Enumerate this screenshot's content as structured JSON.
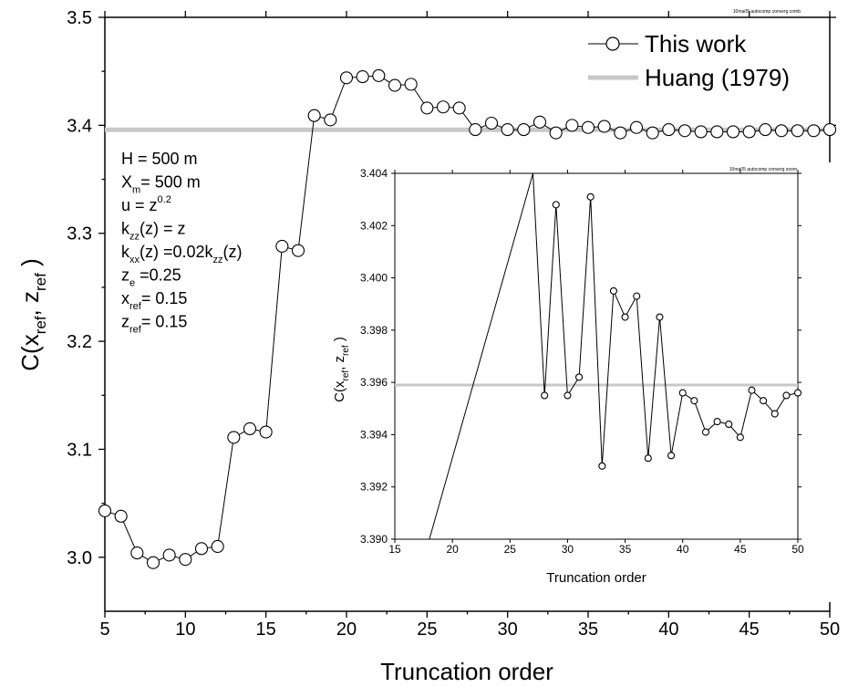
{
  "chart_data": [
    {
      "type": "line",
      "annotation": "10ma05 autocomp converg comb",
      "xlabel": "Truncation order",
      "ylabel_main": "C(x",
      "ylabel_sub1": "ref",
      "ylabel_mid": ", z",
      "ylabel_sub2": "ref",
      "ylabel_end": " )",
      "xlim": [
        5,
        50
      ],
      "ylim": [
        2.95,
        3.5
      ],
      "x_ticks": [
        "5",
        "10",
        "15",
        "20",
        "25",
        "30",
        "35",
        "40",
        "45",
        "50"
      ],
      "y_ticks": [
        "3.0",
        "3.1",
        "3.2",
        "3.3",
        "3.4",
        "3.5"
      ],
      "legend_position": "top-right",
      "series": [
        {
          "name": "This work",
          "style": "line-open-circles",
          "x": [
            5,
            6,
            7,
            8,
            9,
            10,
            11,
            12,
            13,
            14,
            15,
            16,
            17,
            18,
            19,
            20,
            21,
            22,
            23,
            24,
            25,
            26,
            27,
            28,
            29,
            30,
            31,
            32,
            33,
            34,
            35,
            36,
            37,
            38,
            39,
            40,
            41,
            42,
            43,
            44,
            45,
            46,
            47,
            48,
            49,
            50
          ],
          "values": [
            3.043,
            3.038,
            3.004,
            2.995,
            3.002,
            2.998,
            3.008,
            3.01,
            3.111,
            3.119,
            3.116,
            3.288,
            3.284,
            3.409,
            3.405,
            3.444,
            3.445,
            3.446,
            3.437,
            3.438,
            3.416,
            3.417,
            3.416,
            3.396,
            3.402,
            3.396,
            3.396,
            3.403,
            3.393,
            3.4,
            3.398,
            3.399,
            3.393,
            3.398,
            3.393,
            3.396,
            3.395,
            3.394,
            3.394,
            3.394,
            3.394,
            3.396,
            3.395,
            3.395,
            3.395,
            3.396
          ]
        },
        {
          "name": "Huang (1979)",
          "style": "reference-line",
          "color": "#c8c8c8",
          "value": 3.3959
        }
      ],
      "parameters": [
        {
          "main": "H = 500 m",
          "sub": "",
          "sup": "",
          "tail": ""
        },
        {
          "main": "X",
          "sub": "m",
          "sup": "",
          "tail": "= 500 m"
        },
        {
          "main": "u = z",
          "sub": "",
          "sup": "0.2",
          "tail": ""
        },
        {
          "main": "k",
          "sub": "zz",
          "sup": "",
          "tail": "(z) = z"
        },
        {
          "main": "k",
          "sub": "xx",
          "sup": "",
          "tail": "(z) =0.02k",
          "sub2": "zz",
          "tail2": "(z)"
        },
        {
          "main": "z",
          "sub": "e",
          "sup": "",
          "tail": " =0.25"
        },
        {
          "main": "x",
          "sub": "ref",
          "sup": "",
          "tail": "= 0.15"
        },
        {
          "main": "z",
          "sub": "ref",
          "sup": "",
          "tail": "= 0.15"
        }
      ]
    },
    {
      "type": "line",
      "annotation": "10ma05 autocomp converg zoom",
      "xlabel": "Truncation order",
      "xlim": [
        15,
        50
      ],
      "ylim": [
        3.39,
        3.404
      ],
      "x_ticks": [
        "15",
        "20",
        "25",
        "30",
        "35",
        "40",
        "45",
        "50"
      ],
      "y_ticks": [
        "3.390",
        "3.392",
        "3.394",
        "3.396",
        "3.398",
        "3.400",
        "3.402",
        "3.404"
      ],
      "series": [
        {
          "name": "This work",
          "style": "line-open-circles",
          "x": [
            18,
            27,
            28,
            29,
            30,
            31,
            32,
            33,
            34,
            35,
            36,
            37,
            38,
            39,
            40,
            41,
            42,
            43,
            44,
            45,
            46,
            47,
            48,
            49,
            50
          ],
          "values": [
            3.39,
            3.404,
            3.3955,
            3.4028,
            3.3955,
            3.3962,
            3.4031,
            3.3928,
            3.3995,
            3.3985,
            3.3993,
            3.3931,
            3.3985,
            3.3932,
            3.3956,
            3.3953,
            3.3941,
            3.3945,
            3.3944,
            3.3939,
            3.3957,
            3.3953,
            3.3948,
            3.3955,
            3.3956
          ],
          "markers_from_index": 2
        },
        {
          "name": "Huang (1979)",
          "style": "reference-line",
          "color": "#c8c8c8",
          "value": 3.3959
        }
      ]
    }
  ]
}
